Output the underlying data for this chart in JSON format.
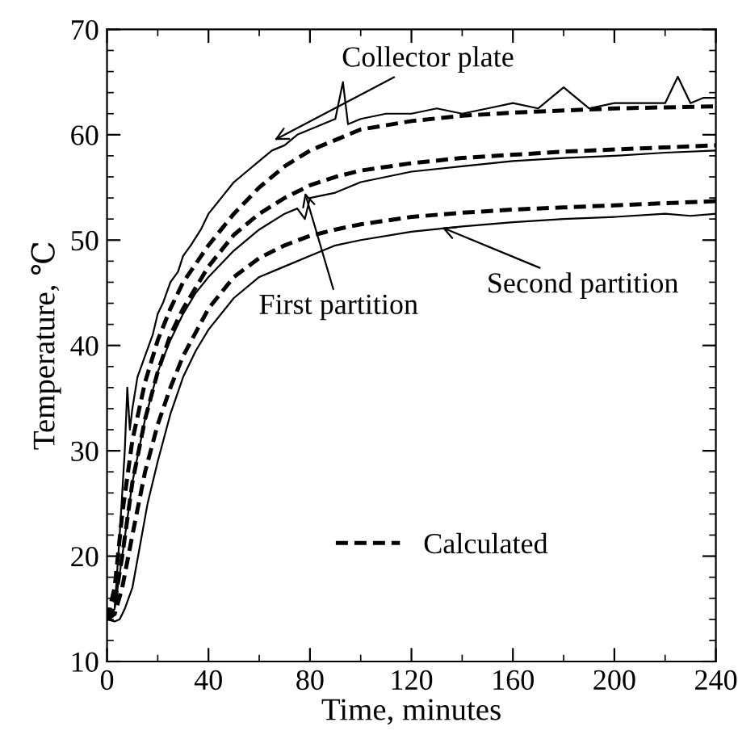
{
  "chart_data": {
    "type": "line",
    "xlabel": "Time, minutes",
    "ylabel": "Temperature, ℃",
    "xlim": [
      0,
      240
    ],
    "ylim": [
      10,
      70
    ],
    "xticks": [
      0,
      40,
      80,
      120,
      160,
      200,
      240
    ],
    "yticks": [
      10,
      20,
      30,
      40,
      50,
      60,
      70
    ],
    "grid": false,
    "legend": "bottom",
    "marker": "none",
    "series": [
      {
        "color": "#000000",
        "line_style": "solid",
        "x": [
          0,
          3,
          5,
          7,
          8,
          9,
          10,
          12,
          15,
          18,
          20,
          22,
          25,
          28,
          30,
          33,
          37,
          40,
          45,
          50,
          55,
          60,
          65,
          70,
          75,
          80,
          85,
          90,
          93,
          95,
          100,
          110,
          120,
          130,
          140,
          150,
          160,
          170,
          180,
          190,
          200,
          210,
          220,
          225,
          230,
          235,
          240
        ],
        "values": [
          14,
          15,
          22,
          30,
          36,
          32,
          34,
          37,
          39,
          41,
          43,
          44,
          46,
          47,
          48.5,
          49.5,
          51,
          52.5,
          54,
          55.5,
          56.5,
          57.5,
          58.5,
          59,
          60,
          60.5,
          61,
          61.5,
          65,
          61,
          61.5,
          62,
          62,
          62.5,
          62,
          62.5,
          63,
          62.5,
          64.5,
          62.5,
          63,
          63,
          63,
          65.5,
          63,
          63.5,
          63.5
        ]
      },
      {
        "name": "Calculated",
        "color": "#000000",
        "line_style": "dashed",
        "x": [
          0,
          3,
          6,
          10,
          15,
          20,
          25,
          30,
          40,
          50,
          60,
          70,
          80,
          90,
          100,
          120,
          140,
          160,
          180,
          200,
          220,
          240
        ],
        "values": [
          14,
          17,
          24,
          31,
          36.5,
          40.5,
          43.5,
          46,
          49.5,
          52.5,
          55,
          57,
          58.5,
          59.5,
          60.5,
          61.3,
          61.8,
          62.1,
          62.3,
          62.5,
          62.6,
          62.7
        ]
      },
      {
        "color": "#000000",
        "line_style": "solid",
        "x": [
          0,
          3,
          6,
          10,
          15,
          20,
          25,
          30,
          35,
          40,
          50,
          60,
          70,
          75,
          78,
          80,
          90,
          100,
          120,
          140,
          160,
          180,
          200,
          220,
          240
        ],
        "values": [
          14,
          15,
          20,
          27,
          33,
          37.5,
          40.5,
          43,
          45,
          46.5,
          49,
          51,
          52.5,
          53,
          52,
          54,
          54.5,
          55.5,
          56.5,
          57,
          57.5,
          57.8,
          58,
          58.3,
          58.5
        ]
      },
      {
        "color": "#000000",
        "line_style": "dashed",
        "x": [
          0,
          3,
          6,
          10,
          15,
          20,
          25,
          30,
          40,
          50,
          60,
          70,
          80,
          90,
          100,
          120,
          140,
          160,
          180,
          200,
          220,
          240
        ],
        "values": [
          14,
          15.5,
          20,
          27,
          33,
          37.5,
          41,
          43.5,
          47.5,
          50.5,
          52.5,
          54,
          55.2,
          56,
          56.6,
          57.3,
          57.8,
          58.1,
          58.4,
          58.6,
          58.8,
          59
        ]
      },
      {
        "color": "#000000",
        "line_style": "solid",
        "x": [
          0,
          3,
          5,
          7,
          10,
          13,
          16,
          20,
          25,
          30,
          35,
          40,
          50,
          60,
          70,
          80,
          90,
          100,
          120,
          140,
          160,
          180,
          200,
          220,
          230,
          240
        ],
        "values": [
          14,
          13.8,
          14,
          15,
          17,
          21,
          25,
          29,
          33.5,
          37,
          39.5,
          41.5,
          44.5,
          46.5,
          47.5,
          48.5,
          49.5,
          50,
          50.8,
          51.3,
          51.7,
          52,
          52.2,
          52.5,
          52.3,
          52.5
        ]
      },
      {
        "color": "#000000",
        "line_style": "dashed",
        "x": [
          0,
          3,
          6,
          10,
          15,
          20,
          25,
          30,
          40,
          50,
          60,
          70,
          80,
          90,
          100,
          120,
          140,
          160,
          180,
          200,
          220,
          240
        ],
        "values": [
          14,
          14.5,
          17,
          22,
          28,
          32.5,
          36,
          39,
          43.5,
          46.5,
          48.3,
          49.5,
          50.4,
          51,
          51.5,
          52.2,
          52.6,
          52.9,
          53.1,
          53.3,
          53.5,
          53.7
        ]
      }
    ],
    "annotations": [
      {
        "text": "Collector plate",
        "x": 66,
        "y": 59.5
      },
      {
        "text": "First partition",
        "x": 78,
        "y": 54.5
      },
      {
        "text": "Second partition",
        "x": 132,
        "y": 51.2
      }
    ]
  }
}
